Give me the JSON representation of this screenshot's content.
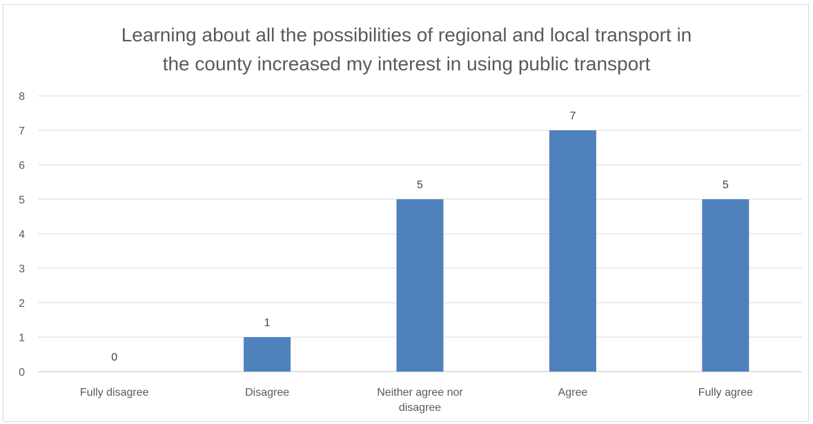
{
  "chart_data": {
    "type": "bar",
    "title_lines": [
      "Learning about all the possibilities of regional and local transport in",
      "the county increased my interest in using public transport"
    ],
    "categories": [
      [
        "Fully disagree"
      ],
      [
        "Disagree"
      ],
      [
        "Neither agree nor",
        "disagree"
      ],
      [
        "Agree"
      ],
      [
        "Fully agree"
      ]
    ],
    "values": [
      0,
      1,
      5,
      7,
      5
    ],
    "data_labels": [
      "0",
      "1",
      "5",
      "7",
      "5"
    ],
    "ylim": [
      0,
      8
    ],
    "yticks": [
      "0",
      "1",
      "2",
      "3",
      "4",
      "5",
      "6",
      "7",
      "8"
    ],
    "grid": true,
    "legend": "none",
    "xlabel": "",
    "ylabel": "",
    "bar_color": "#4f81bd"
  }
}
